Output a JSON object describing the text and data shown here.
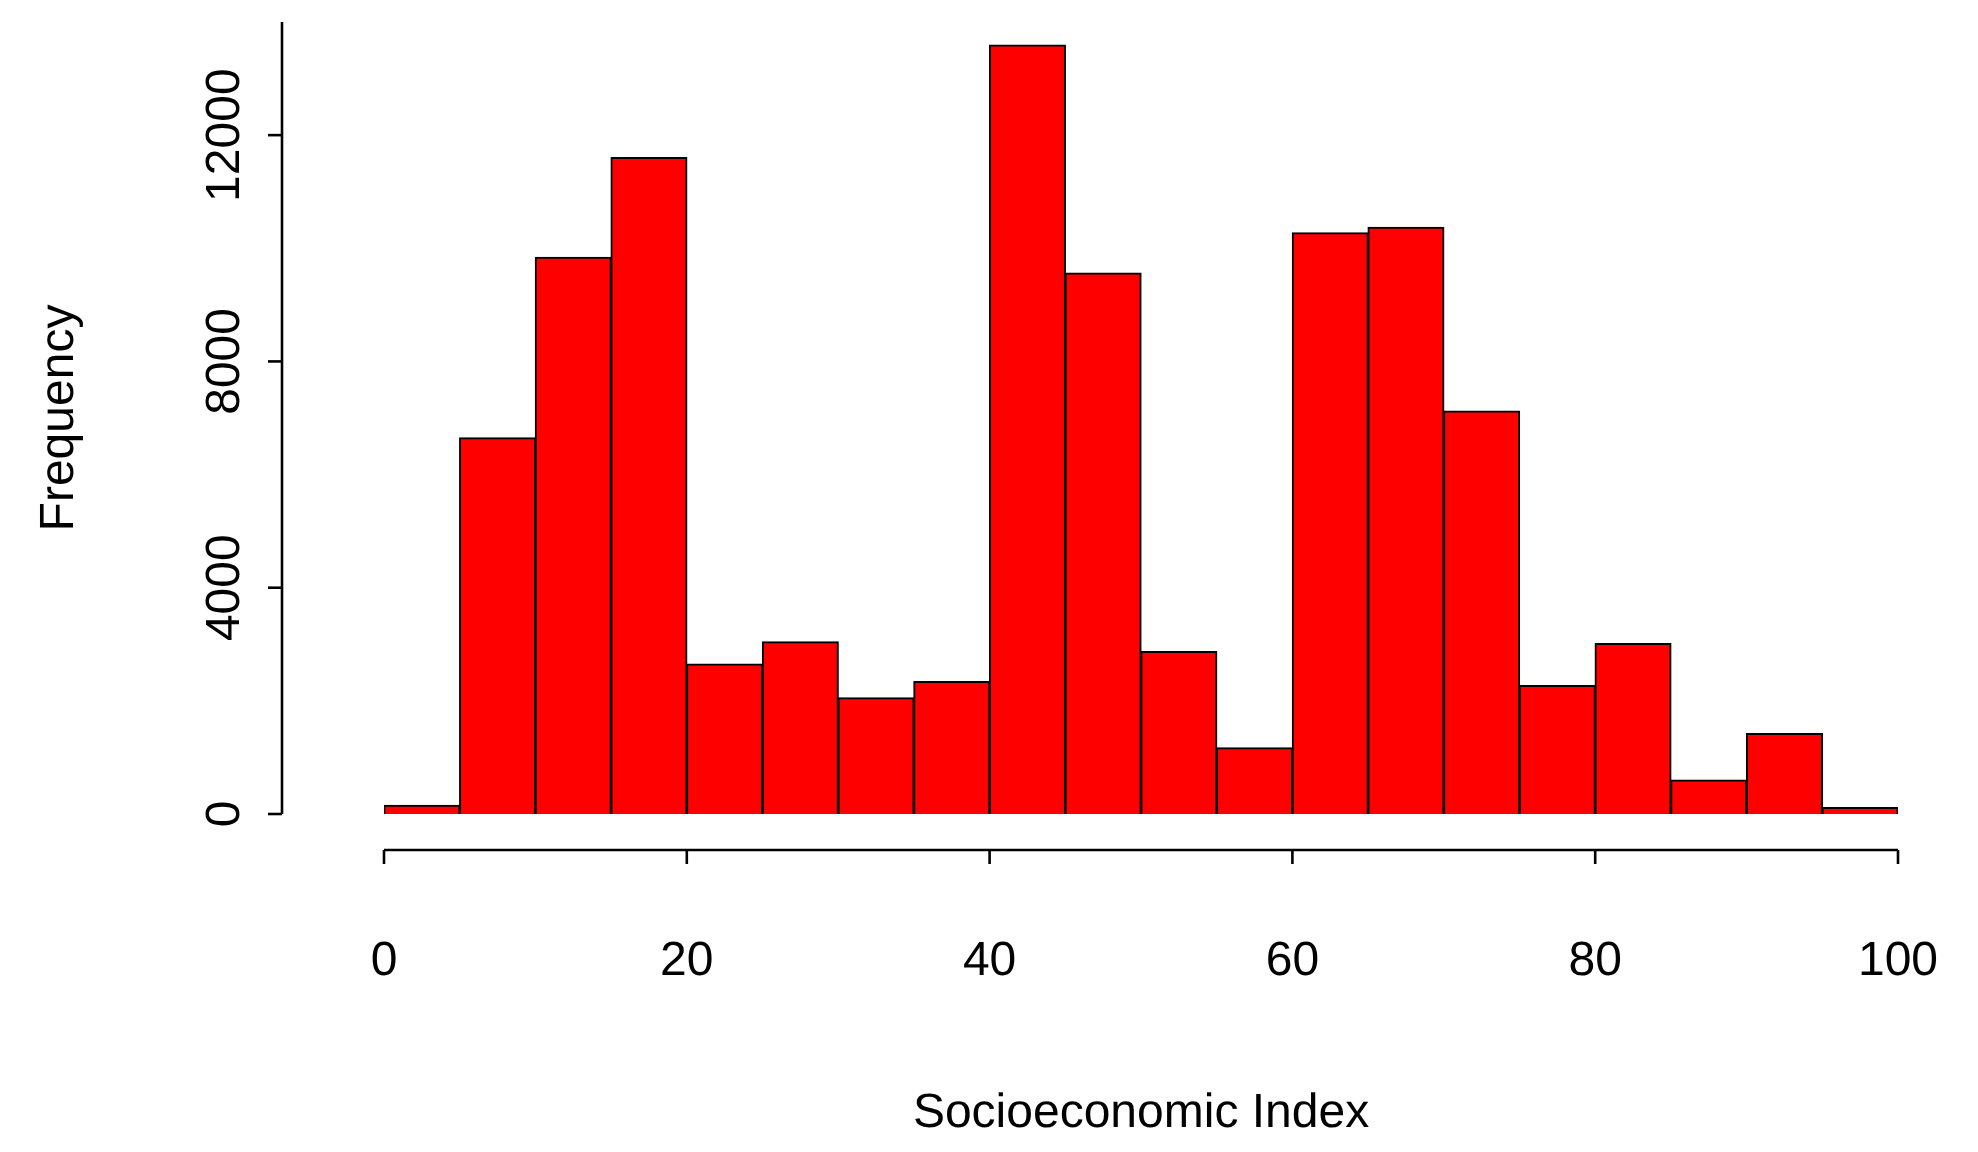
{
  "chart_data": {
    "type": "histogram",
    "xlabel": "Socioeconomic Index",
    "ylabel": "Frequency",
    "bins": [
      0,
      5,
      10,
      15,
      20,
      25,
      30,
      35,
      40,
      45,
      50,
      55,
      60,
      65,
      70,
      75,
      80,
      85,
      90,
      95,
      100
    ],
    "values": [
      150,
      6650,
      9840,
      11600,
      2650,
      3040,
      2050,
      2340,
      13590,
      9560,
      2870,
      1170,
      10270,
      10370,
      7120,
      2270,
      3010,
      600,
      1420,
      110
    ],
    "color": "#ff0000",
    "xlim": [
      0,
      100
    ],
    "xticks": [
      0,
      20,
      40,
      60,
      80,
      100
    ],
    "ylim": [
      0,
      14000
    ],
    "yticks": [
      0,
      4000,
      8000,
      12000
    ],
    "grid": false,
    "legend": false
  }
}
